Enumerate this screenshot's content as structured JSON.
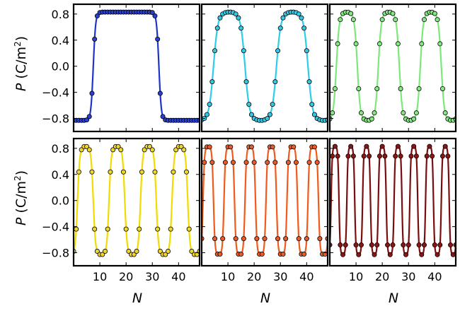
{
  "chart_data": {
    "type": "line",
    "layout": "2x3 grid of panels sharing axes",
    "shared": {
      "x_ticks": [
        10,
        20,
        30,
        40
      ],
      "x_tick_labels": [
        "10",
        "20",
        "30",
        "40"
      ],
      "y_ticks": [
        0.8,
        0.4,
        0.0,
        -0.4,
        -0.8
      ],
      "y_tick_labels": [
        "0.8",
        "0.4",
        "0.0",
        "−0.4",
        "−0.8"
      ],
      "xlim": [
        0,
        48
      ],
      "ylim": [
        -1.0,
        0.95
      ],
      "grid": false,
      "legend": "none",
      "ylabel": {
        "italic": "P",
        "rest": " (C/m",
        "sup": "2",
        "end": ")"
      },
      "xlabel": "N"
    },
    "panels": [
      {
        "row": 0,
        "col": 0,
        "color": "#1f35c8",
        "marker_color": "#2a3fd0",
        "pattern": "square",
        "period": 48,
        "phase": 6.5,
        "amp": 0.83
      },
      {
        "row": 0,
        "col": 1,
        "color": "#2ccde8",
        "marker_color": "#35c8e6",
        "pattern": "square",
        "period": 24,
        "phase": 4.5,
        "amp": 0.83
      },
      {
        "row": 0,
        "col": 2,
        "color": "#7de87a",
        "marker_color": "#86e885",
        "pattern": "square",
        "period": 16,
        "phase": 2.5,
        "amp": 0.83
      },
      {
        "row": 1,
        "col": 0,
        "color": "#f0dc00",
        "marker_color": "#f2d52a",
        "pattern": "square",
        "period": 12,
        "phase": 1.5,
        "amp": 0.83
      },
      {
        "row": 1,
        "col": 1,
        "color": "#f25a1a",
        "marker_color": "#ec5a2a",
        "pattern": "square",
        "period": 8,
        "phase": 0.5,
        "amp": 0.83
      },
      {
        "row": 1,
        "col": 2,
        "color": "#7a0e0e",
        "marker_color": "#8a1616",
        "pattern": "square",
        "period": 6,
        "phase": 0.5,
        "amp": 0.83
      }
    ]
  }
}
